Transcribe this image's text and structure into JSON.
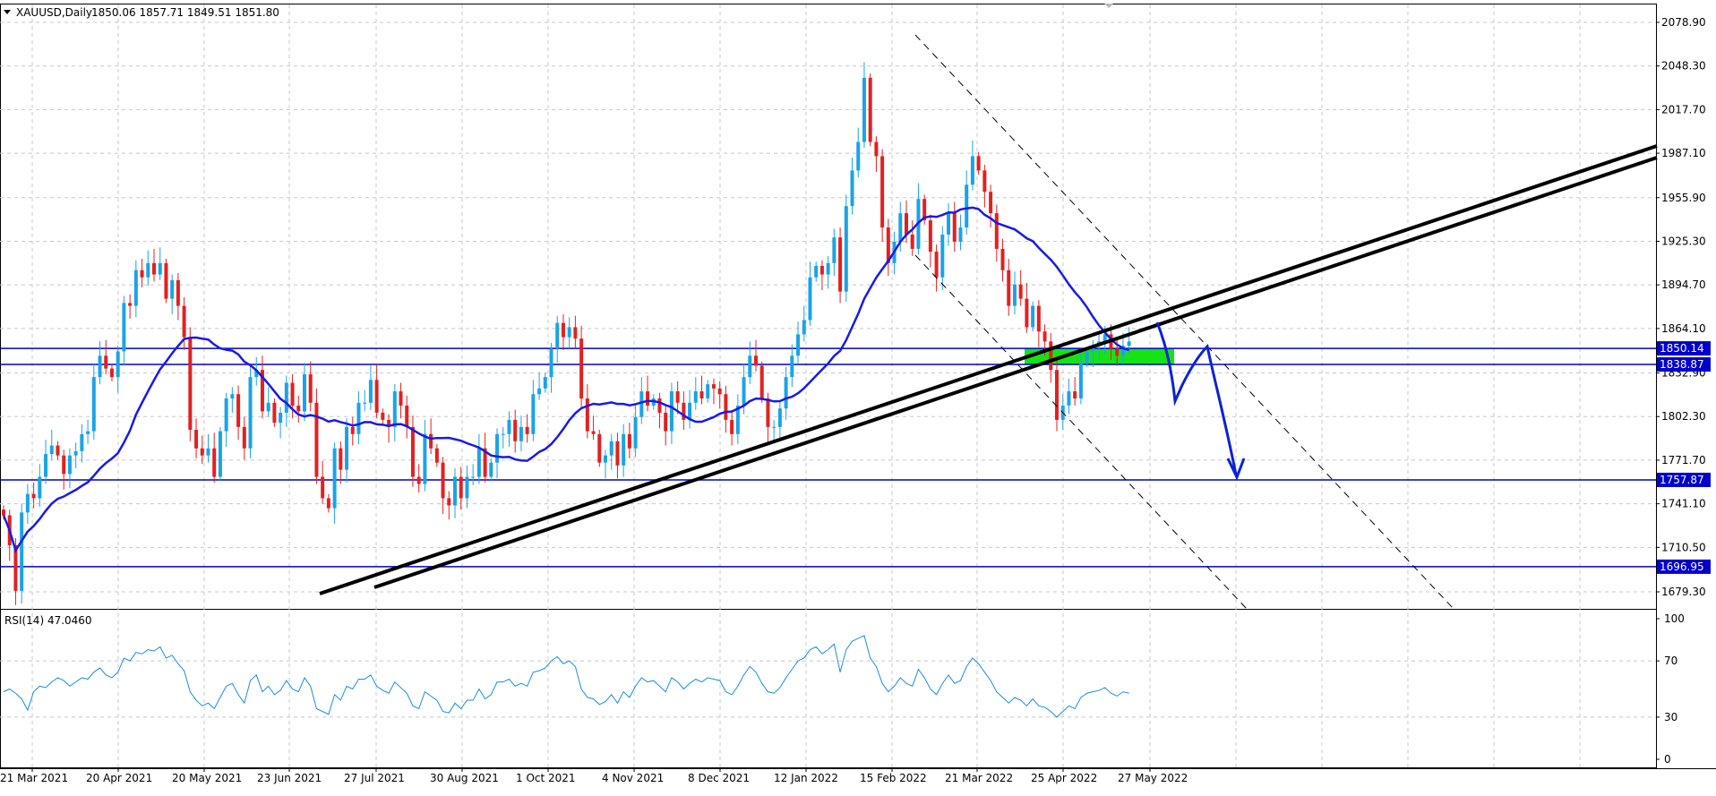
{
  "chart_data": [
    {
      "type": "candlestick",
      "title": "XAUUSD,Daily",
      "ohlc": "1850.06 1857.71 1849.51 1851.80",
      "y_ticks": [
        "2078.90",
        "2048.30",
        "2017.70",
        "1987.10",
        "1955.90",
        "1925.30",
        "1894.70",
        "1864.10",
        "1832.90",
        "1802.30",
        "1771.70",
        "1741.10",
        "1710.50",
        "1679.30"
      ],
      "x_ticks": [
        "21 Mar 2021",
        "20 Apr 2021",
        "20 May 2021",
        "23 Jun 2021",
        "27 Jul 2021",
        "30 Aug 2021",
        "1 Oct 2021",
        "4 Nov 2021",
        "8 Dec 2021",
        "12 Jan 2022",
        "15 Feb 2022",
        "21 Mar 2022",
        "25 Apr 2022",
        "27 May 2022"
      ],
      "ylim": [
        1669,
        2093
      ],
      "grid": true,
      "up_color": "#1ba3e6",
      "down_color": "#e32020",
      "levels": [
        {
          "price": 1850.14,
          "label": "1850.14"
        },
        {
          "price": 1838.87,
          "label": "1838.87"
        },
        {
          "price": 1757.87,
          "label": "1757.87"
        },
        {
          "price": 1696.95,
          "label": "1696.95"
        }
      ],
      "level_color": "#0000cc",
      "zone": {
        "from": 1838.87,
        "to": 1850.14,
        "color": "#16e316"
      },
      "moving_average_color": "#1a1ae6",
      "closes": [
        1733,
        1712,
        1680,
        1735,
        1748,
        1745,
        1760,
        1776,
        1782,
        1775,
        1762,
        1775,
        1778,
        1790,
        1792,
        1830,
        1845,
        1836,
        1830,
        1848,
        1882,
        1880,
        1905,
        1900,
        1910,
        1902,
        1910,
        1885,
        1898,
        1880,
        1858,
        1793,
        1780,
        1775,
        1780,
        1760,
        1792,
        1815,
        1818,
        1795,
        1780,
        1830,
        1835,
        1806,
        1812,
        1798,
        1805,
        1826,
        1810,
        1806,
        1832,
        1812,
        1760,
        1745,
        1738,
        1780,
        1765,
        1795,
        1790,
        1812,
        1812,
        1828,
        1805,
        1800,
        1795,
        1820,
        1810,
        1795,
        1760,
        1755,
        1790,
        1780,
        1770,
        1745,
        1740,
        1760,
        1745,
        1760,
        1760,
        1780,
        1760,
        1770,
        1790,
        1790,
        1800,
        1785,
        1795,
        1790,
        1818,
        1822,
        1830,
        1850,
        1868,
        1858,
        1865,
        1857,
        1815,
        1792,
        1790,
        1770,
        1775,
        1785,
        1768,
        1790,
        1780,
        1802,
        1820,
        1810,
        1815,
        1805,
        1792,
        1820,
        1812,
        1800,
        1812,
        1820,
        1815,
        1825,
        1822,
        1818,
        1800,
        1790,
        1810,
        1830,
        1845,
        1838,
        1815,
        1795,
        1795,
        1808,
        1830,
        1845,
        1860,
        1870,
        1900,
        1908,
        1902,
        1910,
        1928,
        1890,
        1950,
        1975,
        1995,
        2040,
        1995,
        1985,
        1935,
        1910,
        1925,
        1945,
        1930,
        1920,
        1955,
        1940,
        1918,
        1900,
        1930,
        1945,
        1925,
        1935,
        1965,
        1985,
        1975,
        1960,
        1945,
        1920,
        1905,
        1880,
        1895,
        1885,
        1865,
        1880,
        1862,
        1855,
        1835,
        1800,
        1810,
        1820,
        1815,
        1840,
        1848,
        1852,
        1855,
        1860,
        1850,
        1845,
        1852,
        1855
      ]
    },
    {
      "type": "line",
      "title": "RSI(14) 47.0460",
      "y_ticks": [
        "100",
        "70",
        "30",
        "0"
      ],
      "ylim": [
        0,
        100
      ],
      "color": "#1a8fd6",
      "values": [
        48,
        50,
        47,
        43,
        35,
        48,
        52,
        51,
        55,
        58,
        56,
        52,
        55,
        58,
        57,
        62,
        65,
        60,
        58,
        62,
        72,
        70,
        76,
        75,
        78,
        77,
        80,
        72,
        74,
        68,
        63,
        48,
        42,
        38,
        40,
        36,
        44,
        52,
        54,
        46,
        40,
        56,
        60,
        48,
        52,
        46,
        49,
        56,
        50,
        48,
        58,
        52,
        36,
        34,
        32,
        46,
        42,
        52,
        50,
        57,
        57,
        60,
        52,
        49,
        47,
        55,
        51,
        47,
        38,
        36,
        48,
        45,
        42,
        34,
        33,
        40,
        36,
        42,
        42,
        50,
        43,
        46,
        55,
        55,
        57,
        52,
        54,
        52,
        62,
        63,
        65,
        70,
        73,
        68,
        70,
        66,
        50,
        44,
        43,
        39,
        41,
        46,
        40,
        48,
        44,
        52,
        58,
        55,
        56,
        52,
        48,
        58,
        55,
        50,
        54,
        57,
        55,
        58,
        57,
        56,
        48,
        46,
        52,
        60,
        66,
        62,
        54,
        48,
        47,
        51,
        58,
        64,
        70,
        72,
        78,
        80,
        75,
        78,
        82,
        62,
        78,
        84,
        86,
        88,
        72,
        66,
        54,
        48,
        52,
        58,
        54,
        52,
        64,
        58,
        50,
        46,
        54,
        60,
        54,
        56,
        66,
        72,
        68,
        62,
        56,
        48,
        44,
        40,
        44,
        42,
        38,
        43,
        38,
        37,
        34,
        30,
        34,
        38,
        36,
        44,
        47,
        48,
        49,
        51,
        47,
        45,
        48,
        47
      ]
    }
  ]
}
